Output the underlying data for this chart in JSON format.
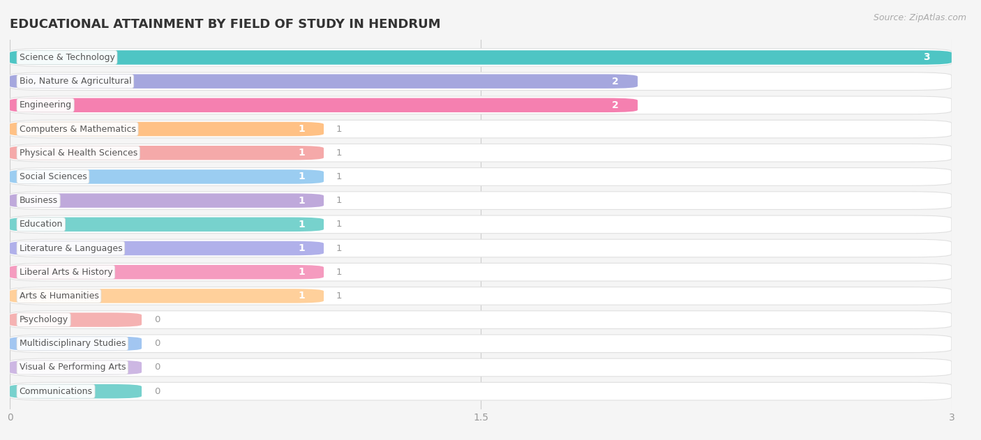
{
  "title": "EDUCATIONAL ATTAINMENT BY FIELD OF STUDY IN HENDRUM",
  "source": "Source: ZipAtlas.com",
  "categories": [
    "Science & Technology",
    "Bio, Nature & Agricultural",
    "Engineering",
    "Computers & Mathematics",
    "Physical & Health Sciences",
    "Social Sciences",
    "Business",
    "Education",
    "Literature & Languages",
    "Liberal Arts & History",
    "Arts & Humanities",
    "Psychology",
    "Multidisciplinary Studies",
    "Visual & Performing Arts",
    "Communications"
  ],
  "values": [
    3,
    2,
    2,
    1,
    1,
    1,
    1,
    1,
    1,
    1,
    1,
    0,
    0,
    0,
    0
  ],
  "bar_colors": [
    "#3BBFBE",
    "#9B9EDB",
    "#F472A8",
    "#FFBB78",
    "#F4A0A0",
    "#90C8F0",
    "#B8A0D8",
    "#68CEC8",
    "#A8A8E8",
    "#F490B8",
    "#FFCB90",
    "#F4AAAA",
    "#98C0F0",
    "#C8B0E0",
    "#68CCC8"
  ],
  "xlim": [
    0,
    3
  ],
  "xticks": [
    0,
    1.5,
    3
  ],
  "background_color": "#f5f5f5",
  "bar_bg_color": "#ffffff",
  "bar_bg_border_color": "#e0e0e0",
  "title_fontsize": 13,
  "label_fontsize": 9.0,
  "value_fontsize_inside": 10,
  "value_fontsize_outside": 9.5
}
